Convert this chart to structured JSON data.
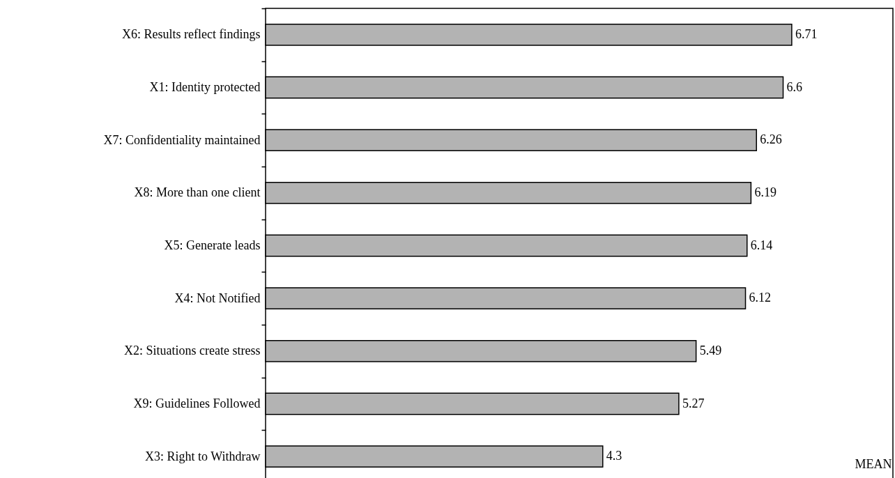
{
  "chart_data": {
    "type": "bar",
    "orientation": "horizontal",
    "xlabel": "MEAN",
    "categories": [
      "X6: Results reflect findings",
      "X1: Identity protected",
      "X7: Confidentiality maintained",
      "X8: More than one client",
      "X5: Generate leads",
      "X4: Not Notified",
      "X2: Situations create stress",
      "X9: Guidelines Followed",
      "X3: Right to Withdraw"
    ],
    "values": [
      6.71,
      6.6,
      6.26,
      6.19,
      6.14,
      6.12,
      5.49,
      5.27,
      4.3
    ],
    "color": "#b3b3b3",
    "xlim": [
      0,
      8
    ],
    "tick_labels": "y",
    "data_labels": true
  }
}
